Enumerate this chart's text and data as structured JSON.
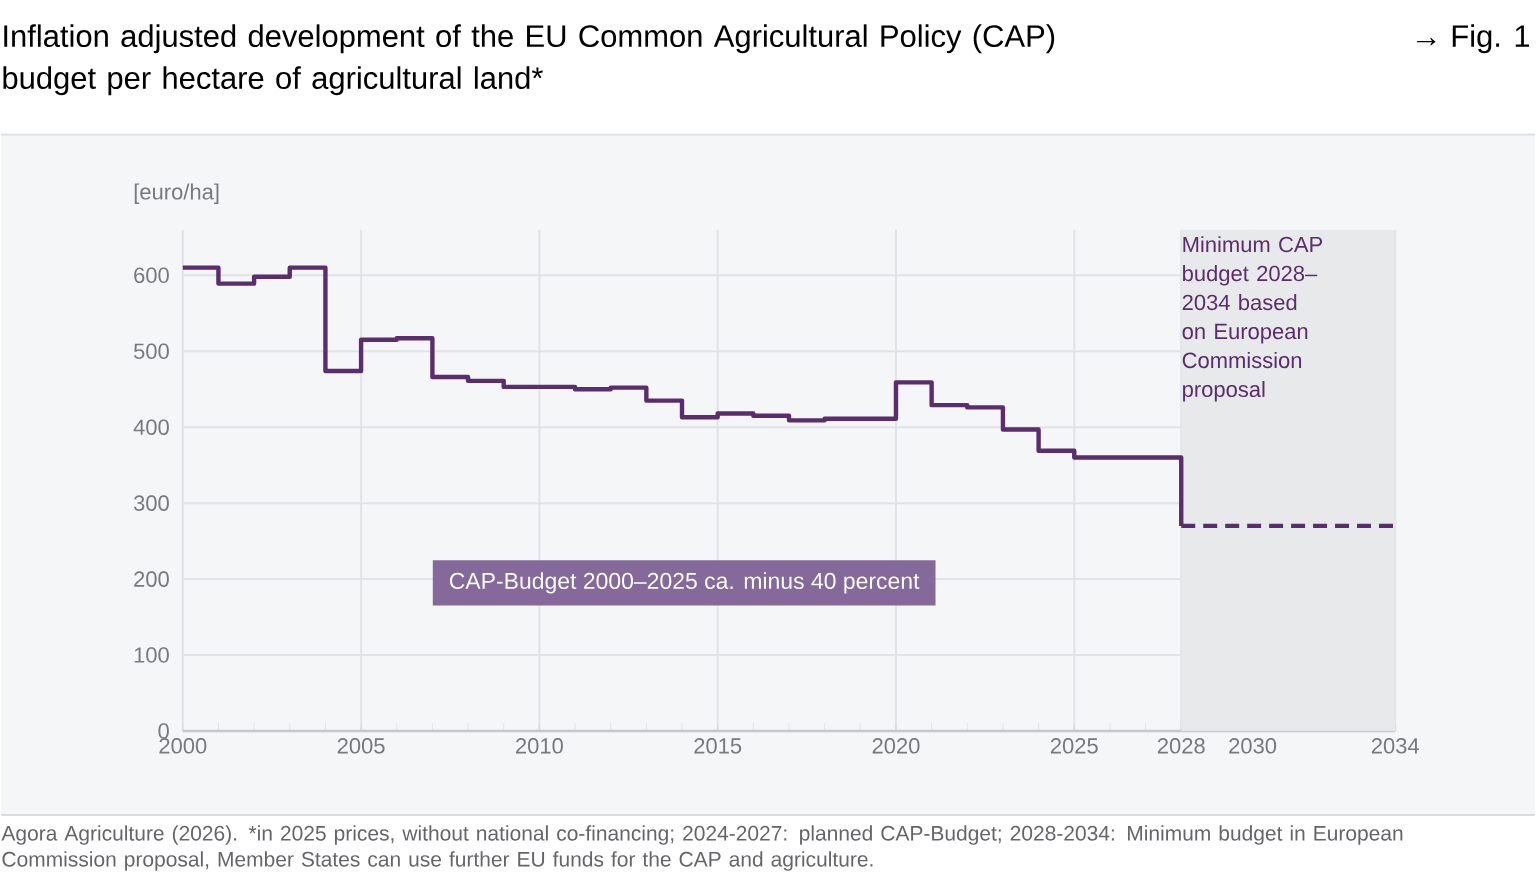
{
  "chart_data": {
    "type": "step",
    "title": "Inflation adjusted development of the EU Common Agricultural Policy (CAP) budget per hectare of agricultural land*",
    "ylabel": "[euro/ha]",
    "x": [
      2000,
      2001,
      2002,
      2003,
      2004,
      2005,
      2006,
      2007,
      2008,
      2009,
      2010,
      2011,
      2012,
      2013,
      2014,
      2015,
      2016,
      2017,
      2018,
      2019,
      2020,
      2021,
      2022,
      2023,
      2024,
      2025,
      2026,
      2027,
      2028
    ],
    "series": [
      {
        "color": "#5b2d6e",
        "line_style": "solid",
        "values": [
          610,
          589,
          598,
          610,
          474,
          515,
          517,
          466,
          461,
          453,
          453,
          450,
          452,
          435,
          413,
          418,
          415,
          409,
          411,
          411,
          459,
          429,
          426,
          397,
          369,
          360,
          360,
          360,
          270
        ]
      },
      {
        "color": "#5b2d6e",
        "line_style": "dashed",
        "x": [
          2028,
          2034
        ],
        "values": [
          270,
          270
        ]
      }
    ],
    "xlim": [
      2000,
      2034
    ],
    "ylim": [
      0,
      660
    ],
    "xticks": [
      2000,
      {
        "value": 2001,
        "label": null
      },
      {
        "value": 2002,
        "label": null
      },
      {
        "value": 2003,
        "label": null
      },
      {
        "value": 2004,
        "label": null
      },
      2005,
      {
        "value": 2006,
        "label": null
      },
      {
        "value": 2007,
        "label": null
      },
      {
        "value": 2008,
        "label": null
      },
      {
        "value": 2009,
        "label": null
      },
      2010,
      {
        "value": 2011,
        "label": null
      },
      {
        "value": 2012,
        "label": null
      },
      {
        "value": 2013,
        "label": null
      },
      {
        "value": 2014,
        "label": null
      },
      2015,
      {
        "value": 2016,
        "label": null
      },
      {
        "value": 2017,
        "label": null
      },
      {
        "value": 2018,
        "label": null
      },
      {
        "value": 2019,
        "label": null
      },
      2020,
      {
        "value": 2021,
        "label": null
      },
      {
        "value": 2022,
        "label": null
      },
      {
        "value": 2023,
        "label": null
      },
      {
        "value": 2024,
        "label": null
      },
      2025,
      {
        "value": 2026,
        "label": null
      },
      {
        "value": 2027,
        "label": null
      },
      2028,
      {
        "value": 2029,
        "label": null
      },
      2030,
      {
        "value": 2031,
        "label": null
      },
      {
        "value": 2032,
        "label": null
      },
      {
        "value": 2033,
        "label": null
      },
      2034
    ],
    "yticks": [
      0,
      100,
      200,
      300,
      400,
      500,
      600
    ],
    "grid": true,
    "marker": "none",
    "bands": [
      {
        "axis": "x",
        "from": 2028,
        "to": 2034,
        "color": "#e8e9eb",
        "label": "Minimum CAP budget 2028–2034 based on European Commission proposal"
      }
    ],
    "annotations": [
      "→ Fig. 1",
      "CAP-Budget 2000–2025 ca. minus 40 percent",
      "Agora Agriculture (2026). *in 2025 prices, without national co-financing; 2024-2027: planned CAP-Budget; 2028-2034: Minimum budget in European Commission proposal, Member States can use further EU funds for the CAP and agriculture."
    ]
  }
}
